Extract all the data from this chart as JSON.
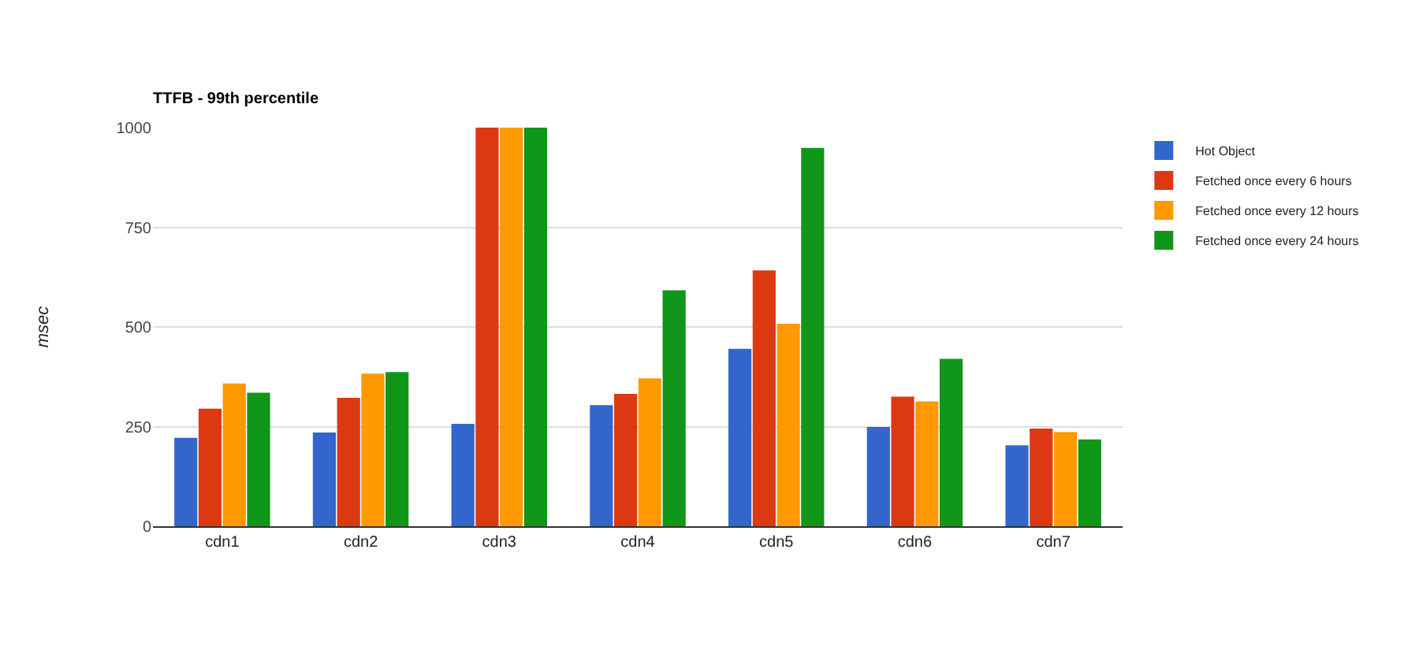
{
  "chart_data": {
    "type": "bar",
    "title": "TTFB - 99th percentile",
    "ylabel": "msec",
    "categories": [
      "cdn1",
      "cdn2",
      "cdn3",
      "cdn4",
      "cdn5",
      "cdn6",
      "cdn7"
    ],
    "series": [
      {
        "name": "Hot Object",
        "color": "#3366cc",
        "values": [
          222,
          235,
          257,
          304,
          445,
          249,
          203
        ]
      },
      {
        "name": "Fetched once every 6 hours",
        "color": "#dc3912",
        "values": [
          295,
          322,
          1000,
          332,
          642,
          325,
          245
        ]
      },
      {
        "name": "Fetched once every 12 hours",
        "color": "#ff9900",
        "values": [
          358,
          383,
          1000,
          371,
          508,
          313,
          236
        ]
      },
      {
        "name": "Fetched once every 24 hours",
        "color": "#109618",
        "values": [
          335,
          387,
          1000,
          592,
          949,
          420,
          218
        ]
      }
    ],
    "ylim": [
      0,
      1000
    ],
    "yticks": [
      0,
      250,
      500,
      750,
      1000
    ],
    "grid": "y",
    "legend": "top right"
  }
}
